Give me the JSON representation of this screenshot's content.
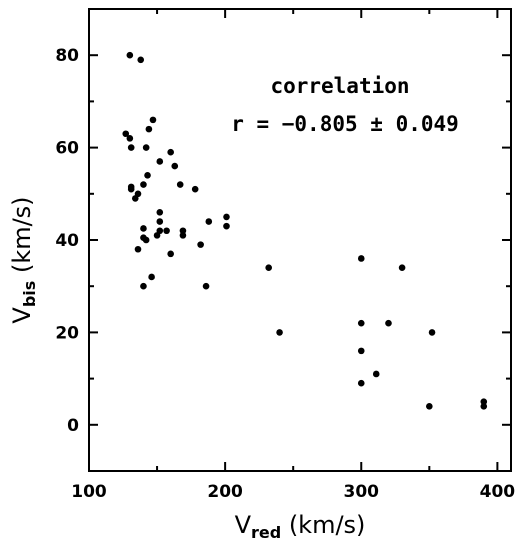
{
  "chart_data": {
    "type": "scatter",
    "xlabel": {
      "main": "V",
      "sub": "red",
      "unit": " (km/s)"
    },
    "ylabel": {
      "main": "V",
      "sub": "bis",
      "unit": " (km/s)"
    },
    "xlim": [
      100,
      410
    ],
    "ylim": [
      -10,
      90
    ],
    "xticks": [
      100,
      200,
      300,
      400
    ],
    "yticks": [
      0,
      20,
      40,
      60,
      80
    ],
    "grid": false,
    "annotations": [
      "correlation",
      "r = −0.805 ± 0.049"
    ],
    "series": [
      {
        "color": "#000000",
        "points": [
          [
            130,
            80
          ],
          [
            138,
            79
          ],
          [
            147,
            66
          ],
          [
            127,
            63
          ],
          [
            144,
            64
          ],
          [
            130,
            62
          ],
          [
            142,
            60
          ],
          [
            131,
            60
          ],
          [
            160,
            59
          ],
          [
            163,
            56
          ],
          [
            152,
            57
          ],
          [
            143,
            54
          ],
          [
            167,
            52
          ],
          [
            140,
            52
          ],
          [
            131,
            51.5
          ],
          [
            131,
            51
          ],
          [
            178,
            51
          ],
          [
            136,
            50
          ],
          [
            134,
            49
          ],
          [
            152,
            46
          ],
          [
            152,
            44
          ],
          [
            188,
            44
          ],
          [
            201,
            45
          ],
          [
            201,
            43
          ],
          [
            140,
            42.5
          ],
          [
            152,
            42
          ],
          [
            157,
            42
          ],
          [
            169,
            42
          ],
          [
            150,
            41
          ],
          [
            169,
            41
          ],
          [
            140,
            40.5
          ],
          [
            142,
            40
          ],
          [
            182,
            39
          ],
          [
            136,
            38
          ],
          [
            160,
            37
          ],
          [
            146,
            32
          ],
          [
            140,
            30
          ],
          [
            186,
            30
          ],
          [
            232,
            34
          ],
          [
            240,
            20
          ],
          [
            300,
            36
          ],
          [
            330,
            34
          ],
          [
            300,
            22
          ],
          [
            320,
            22
          ],
          [
            352,
            20
          ],
          [
            300,
            16
          ],
          [
            311,
            11
          ],
          [
            300,
            9
          ],
          [
            350,
            4
          ],
          [
            390,
            5
          ],
          [
            390,
            4
          ]
        ]
      }
    ]
  }
}
